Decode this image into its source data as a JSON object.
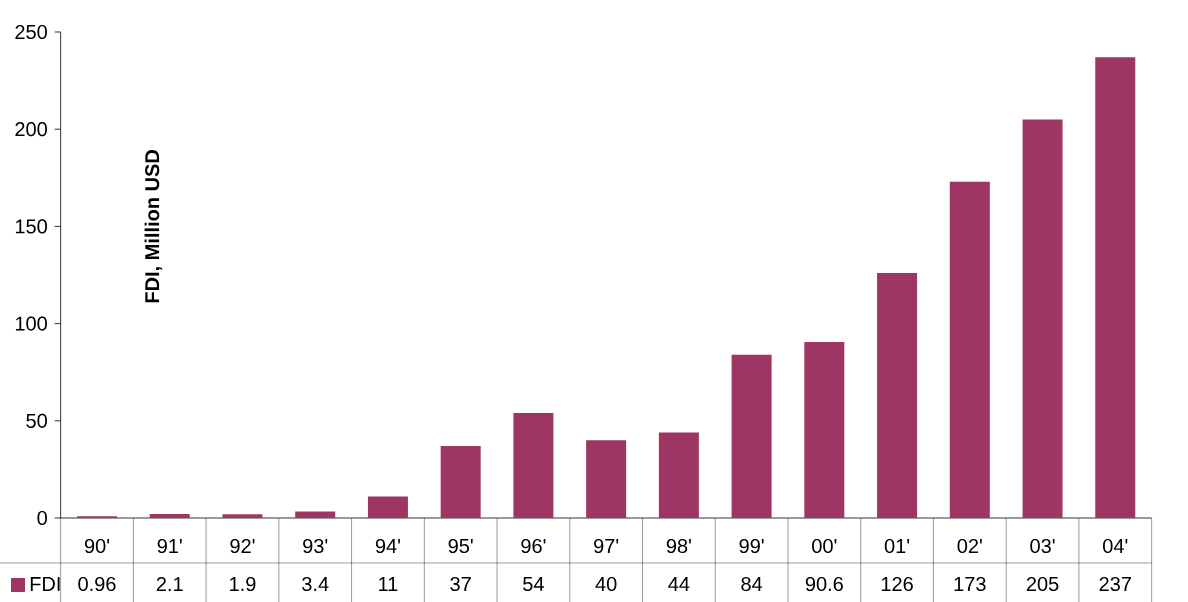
{
  "chart_data": {
    "type": "bar",
    "ylabel": "FDI, Million USD",
    "categories": [
      "90'",
      "91'",
      "92'",
      "93'",
      "94'",
      "95'",
      "96'",
      "97'",
      "98'",
      "99'",
      "00'",
      "01'",
      "02'",
      "03'",
      "04'"
    ],
    "series": [
      {
        "name": "FDI",
        "color": "#9e3663",
        "values": [
          0.96,
          2.1,
          1.9,
          3.4,
          11,
          37,
          54,
          40,
          44,
          84,
          90.6,
          126,
          173,
          205,
          237
        ]
      }
    ],
    "ylim": [
      0,
      250
    ],
    "yticks": [
      0,
      50,
      100,
      150,
      200,
      250
    ],
    "data_labels": true,
    "legend": "bottom",
    "grid": false
  }
}
